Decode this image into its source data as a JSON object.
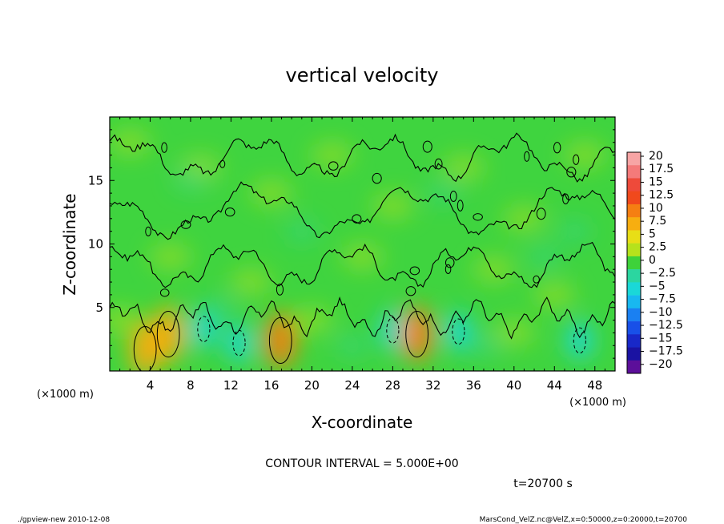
{
  "chart_data": {
    "type": "heatmap",
    "title": "vertical velocity",
    "xlabel": "X-coordinate",
    "ylabel": "Z-coordinate",
    "x_unit": "(×1000 m)",
    "y_unit": "(×1000 m)",
    "xlim": [
      0,
      50
    ],
    "ylim": [
      0,
      20
    ],
    "x_ticks": [
      "4",
      "8",
      "12",
      "16",
      "20",
      "24",
      "28",
      "32",
      "36",
      "40",
      "44",
      "48"
    ],
    "y_ticks": [
      "5",
      "10",
      "15"
    ],
    "colorbar": {
      "labels": [
        "20",
        "17.5",
        "15",
        "12.5",
        "10",
        "7.5",
        "5",
        "2.5",
        "0",
        "−2.5",
        "−5",
        "−7.5",
        "−10",
        "−12.5",
        "−15",
        "−17.5",
        "−20"
      ],
      "colors": [
        "#f7a5a5",
        "#f47a7a",
        "#ee4a3a",
        "#f0491c",
        "#f57f12",
        "#f7ae10",
        "#e8de16",
        "#b6e21c",
        "#3ed23a",
        "#2bd6a0",
        "#1ad8d8",
        "#18b8f0",
        "#1a80f2",
        "#1850e8",
        "#1828c8",
        "#1a12a2",
        "#5c0f9a"
      ]
    },
    "contour_interval_text": "CONTOUR INTERVAL = 5.000E+00",
    "time_text": "t=20700 s",
    "features": [
      {
        "kind": "updraft",
        "x": 3.5,
        "z": 1.7,
        "value": 7
      },
      {
        "kind": "updraft",
        "x": 5.8,
        "z": 2.9,
        "value": 7
      },
      {
        "kind": "downdraft",
        "x": 9.3,
        "z": 3.3,
        "value": -6
      },
      {
        "kind": "downdraft",
        "x": 12.8,
        "z": 2.2,
        "value": -5
      },
      {
        "kind": "updraft",
        "x": 16.9,
        "z": 2.4,
        "value": 10
      },
      {
        "kind": "downdraft",
        "x": 28,
        "z": 3.2,
        "value": -5
      },
      {
        "kind": "updraft",
        "x": 30.4,
        "z": 2.9,
        "value": 10
      },
      {
        "kind": "downdraft",
        "x": 34.5,
        "z": 3.1,
        "value": -6
      },
      {
        "kind": "downdraft",
        "x": 46.5,
        "z": 2.4,
        "value": -6
      }
    ]
  },
  "footer": {
    "left": "./gpview-new  2010-12-08",
    "right": "MarsCond_VelZ.nc@VelZ,x=0:50000,z=0:20000,t=20700"
  }
}
